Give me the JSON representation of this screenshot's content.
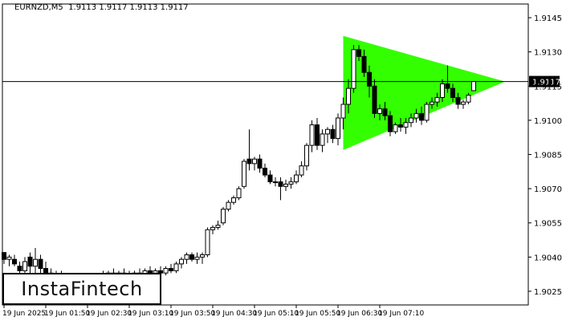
{
  "header": {
    "symbol": "EURNZD,M5",
    "ohlc": "1.9113 1.9117 1.9113 1.9117"
  },
  "logo": {
    "text": "InstaFintech"
  },
  "colors": {
    "pattern": "#33ff00",
    "bull": "#ffffff",
    "bear": "#000000",
    "axis": "#000000",
    "background": "#ffffff"
  },
  "chart_data": {
    "type": "candlestick",
    "y_ticks": [
      "1.9145",
      "1.9130",
      "1.9115",
      "1.9100",
      "1.9085",
      "1.9070",
      "1.9055",
      "1.9040",
      "1.9025"
    ],
    "x_ticks": [
      "19 Jun 2025",
      "19 Jun 01:50",
      "19 Jun 02:30",
      "19 Jun 03:10",
      "19 Jun 03:50",
      "19 Jun 04:30",
      "19 Jun 05:10",
      "19 Jun 05:50",
      "19 Jun 06:30",
      "19 Jun 07:10"
    ],
    "ylim": [
      1.9019,
      1.9151
    ],
    "current_price": "1.9117",
    "current_price_value": 1.9117,
    "pattern": {
      "name": "Bullish Symmetrical Triangle",
      "upper_start": 1.9137,
      "lower_start": 1.9087,
      "apex": 1.9117
    },
    "candles": [
      [
        1.9042,
        1.9042,
        1.9037,
        1.9039
      ],
      [
        1.9039,
        1.9041,
        1.9036,
        1.904
      ],
      [
        1.9039,
        1.9041,
        1.9036,
        1.9037
      ],
      [
        1.9036,
        1.9038,
        1.9032,
        1.9034
      ],
      [
        1.9034,
        1.904,
        1.9032,
        1.9038
      ],
      [
        1.904,
        1.9042,
        1.903,
        1.9036
      ],
      [
        1.9036,
        1.9044,
        1.9033,
        1.9039
      ],
      [
        1.9039,
        1.9041,
        1.9033,
        1.9035
      ],
      [
        1.9035,
        1.9038,
        1.9031,
        1.9033
      ],
      [
        1.9033,
        1.9035,
        1.903,
        1.9031
      ],
      [
        1.9031,
        1.9034,
        1.9029,
        1.9032
      ],
      [
        1.9032,
        1.9034,
        1.9029,
        1.903
      ],
      [
        1.903,
        1.9033,
        1.9028,
        1.9031
      ],
      [
        1.9031,
        1.9033,
        1.9029,
        1.903
      ],
      [
        1.903,
        1.9032,
        1.9028,
        1.9031
      ],
      [
        1.9031,
        1.9033,
        1.9029,
        1.903
      ],
      [
        1.903,
        1.9032,
        1.9028,
        1.9031
      ],
      [
        1.9031,
        1.9033,
        1.9029,
        1.903
      ],
      [
        1.903,
        1.9033,
        1.9029,
        1.9032
      ],
      [
        1.9032,
        1.9034,
        1.903,
        1.9031
      ],
      [
        1.9031,
        1.9034,
        1.903,
        1.9033
      ],
      [
        1.9033,
        1.9035,
        1.9031,
        1.9032
      ],
      [
        1.9032,
        1.9034,
        1.903,
        1.9033
      ],
      [
        1.9033,
        1.9035,
        1.9031,
        1.9032
      ],
      [
        1.9032,
        1.9034,
        1.903,
        1.9031
      ],
      [
        1.9031,
        1.9034,
        1.903,
        1.9033
      ],
      [
        1.9033,
        1.9035,
        1.9031,
        1.9032
      ],
      [
        1.9032,
        1.9035,
        1.9031,
        1.9034
      ],
      [
        1.9034,
        1.9036,
        1.9032,
        1.9033
      ],
      [
        1.9033,
        1.9035,
        1.9031,
        1.9034
      ],
      [
        1.9034,
        1.9036,
        1.9032,
        1.9033
      ],
      [
        1.9033,
        1.9036,
        1.9032,
        1.9035
      ],
      [
        1.9035,
        1.9037,
        1.9033,
        1.9034
      ],
      [
        1.9034,
        1.9038,
        1.9033,
        1.9037
      ],
      [
        1.9037,
        1.904,
        1.9035,
        1.9039
      ],
      [
        1.9039,
        1.9042,
        1.9037,
        1.9041
      ],
      [
        1.9041,
        1.9042,
        1.9038,
        1.9039
      ],
      [
        1.9039,
        1.9042,
        1.9037,
        1.904
      ],
      [
        1.904,
        1.9042,
        1.9037,
        1.9041
      ],
      [
        1.9041,
        1.9053,
        1.904,
        1.9052
      ],
      [
        1.9052,
        1.9054,
        1.905,
        1.9053
      ],
      [
        1.9053,
        1.9056,
        1.9052,
        1.9054
      ],
      [
        1.9055,
        1.9062,
        1.9054,
        1.9061
      ],
      [
        1.9061,
        1.9065,
        1.906,
        1.9064
      ],
      [
        1.9064,
        1.9067,
        1.9063,
        1.9066
      ],
      [
        1.9066,
        1.9071,
        1.9065,
        1.907
      ],
      [
        1.9071,
        1.9083,
        1.907,
        1.9082
      ],
      [
        1.9083,
        1.9096,
        1.9078,
        1.9081
      ],
      [
        1.9081,
        1.9084,
        1.9078,
        1.9083
      ],
      [
        1.9083,
        1.9085,
        1.9077,
        1.9079
      ],
      [
        1.9079,
        1.9081,
        1.9075,
        1.9076
      ],
      [
        1.9076,
        1.9078,
        1.9072,
        1.9073
      ],
      [
        1.9073,
        1.9075,
        1.9071,
        1.9073
      ],
      [
        1.9073,
        1.9075,
        1.9065,
        1.9071
      ],
      [
        1.9071,
        1.9074,
        1.9069,
        1.9072
      ],
      [
        1.9072,
        1.9075,
        1.907,
        1.9073
      ],
      [
        1.9073,
        1.9078,
        1.9072,
        1.9076
      ],
      [
        1.9076,
        1.9082,
        1.9075,
        1.908
      ],
      [
        1.908,
        1.909,
        1.9078,
        1.9089
      ],
      [
        1.9089,
        1.91,
        1.9086,
        1.9098
      ],
      [
        1.9098,
        1.9101,
        1.9087,
        1.9089
      ],
      [
        1.9089,
        1.9096,
        1.9086,
        1.9094
      ],
      [
        1.9094,
        1.9097,
        1.909,
        1.9096
      ],
      [
        1.9096,
        1.9098,
        1.909,
        1.9092
      ],
      [
        1.9092,
        1.9103,
        1.9089,
        1.9101
      ],
      [
        1.9101,
        1.911,
        1.9096,
        1.9107
      ],
      [
        1.9107,
        1.9118,
        1.9103,
        1.9114
      ],
      [
        1.9114,
        1.9133,
        1.9112,
        1.9131
      ],
      [
        1.9131,
        1.9133,
        1.9126,
        1.9128
      ],
      [
        1.9128,
        1.9131,
        1.9119,
        1.9121
      ],
      [
        1.9121,
        1.9124,
        1.911,
        1.9115
      ],
      [
        1.9115,
        1.9118,
        1.9101,
        1.9103
      ],
      [
        1.9103,
        1.9107,
        1.91,
        1.9105
      ],
      [
        1.9105,
        1.9108,
        1.91,
        1.9102
      ],
      [
        1.9102,
        1.9104,
        1.9093,
        1.9095
      ],
      [
        1.9095,
        1.9099,
        1.9094,
        1.9098
      ],
      [
        1.9098,
        1.9101,
        1.9095,
        1.9097
      ],
      [
        1.9097,
        1.9101,
        1.9094,
        1.9099
      ],
      [
        1.9099,
        1.9103,
        1.9097,
        1.9101
      ],
      [
        1.9101,
        1.9105,
        1.9099,
        1.9103
      ],
      [
        1.9103,
        1.9106,
        1.9098,
        1.91
      ],
      [
        1.91,
        1.9108,
        1.9099,
        1.9107
      ],
      [
        1.9107,
        1.911,
        1.9105,
        1.9108
      ],
      [
        1.9108,
        1.9112,
        1.9106,
        1.911
      ],
      [
        1.911,
        1.9118,
        1.9108,
        1.9116
      ],
      [
        1.9116,
        1.9124,
        1.9112,
        1.9114
      ],
      [
        1.9114,
        1.9116,
        1.9108,
        1.911
      ],
      [
        1.911,
        1.9112,
        1.9105,
        1.9107
      ],
      [
        1.9107,
        1.9109,
        1.9105,
        1.9108
      ],
      [
        1.9108,
        1.9112,
        1.9107,
        1.9111
      ],
      [
        1.9113,
        1.9117,
        1.9113,
        1.9117
      ]
    ]
  }
}
